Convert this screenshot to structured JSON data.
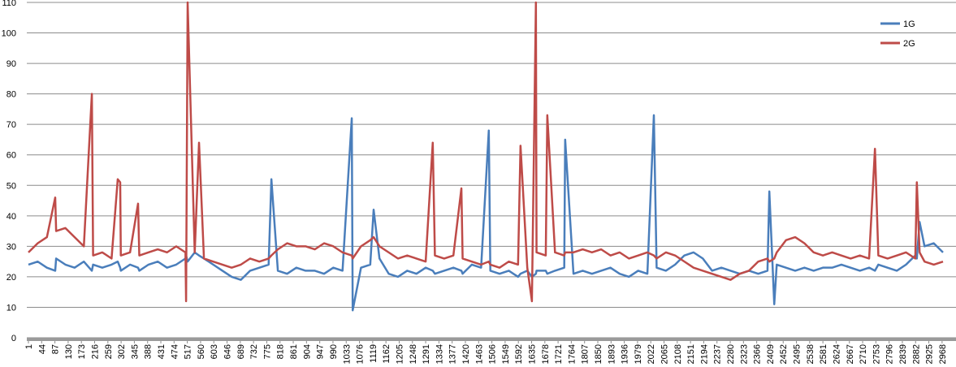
{
  "chart_data": {
    "type": "line",
    "x": [
      1,
      31,
      61,
      88,
      91,
      121,
      151,
      181,
      207,
      211,
      241,
      271,
      291,
      299,
      301,
      331,
      357,
      361,
      391,
      421,
      451,
      481,
      511,
      513,
      518,
      541,
      555,
      571,
      601,
      631,
      661,
      691,
      721,
      751,
      781,
      790,
      811,
      841,
      871,
      901,
      931,
      961,
      991,
      1021,
      1051,
      1054,
      1081,
      1111,
      1122,
      1141,
      1171,
      1201,
      1231,
      1261,
      1291,
      1314,
      1321,
      1351,
      1381,
      1407,
      1411,
      1441,
      1471,
      1496,
      1501,
      1531,
      1561,
      1591,
      1599,
      1621,
      1636,
      1649,
      1651,
      1681,
      1686,
      1711,
      1741,
      1744,
      1771,
      1801,
      1831,
      1861,
      1891,
      1921,
      1951,
      1981,
      2011,
      2032,
      2041,
      2071,
      2101,
      2131,
      2161,
      2191,
      2221,
      2251,
      2281,
      2311,
      2341,
      2371,
      2401,
      2407,
      2423,
      2431,
      2461,
      2491,
      2521,
      2551,
      2581,
      2611,
      2641,
      2671,
      2701,
      2731,
      2750,
      2761,
      2791,
      2821,
      2851,
      2881,
      2886,
      2895,
      2911,
      2941,
      2971
    ],
    "series": [
      {
        "name": "1G",
        "color": "#4a7ebb",
        "values": [
          24,
          25,
          23,
          22,
          26,
          24,
          23,
          25,
          22,
          24,
          23,
          24,
          25,
          23,
          22,
          24,
          23,
          22,
          24,
          25,
          23,
          24,
          26,
          27,
          25,
          28,
          27,
          26,
          24,
          22,
          20,
          19,
          22,
          23,
          24,
          52,
          22,
          21,
          23,
          22,
          22,
          21,
          23,
          22,
          72,
          9,
          23,
          24,
          42,
          26,
          21,
          20,
          22,
          21,
          23,
          22,
          21,
          22,
          23,
          22,
          21,
          24,
          23,
          68,
          22,
          21,
          22,
          20,
          21,
          22,
          20,
          21,
          22,
          22,
          21,
          22,
          23,
          65,
          21,
          22,
          21,
          22,
          23,
          21,
          20,
          22,
          21,
          73,
          23,
          22,
          24,
          27,
          28,
          26,
          22,
          23,
          22,
          21,
          22,
          21,
          22,
          48,
          11,
          24,
          23,
          22,
          23,
          22,
          23,
          23,
          24,
          23,
          22,
          23,
          22,
          24,
          23,
          22,
          24,
          27,
          26,
          38,
          30,
          31,
          28
        ]
      },
      {
        "name": "2G",
        "color": "#be4b48",
        "values": [
          28,
          31,
          33,
          46,
          35,
          36,
          33,
          30,
          80,
          27,
          28,
          26,
          52,
          51,
          27,
          28,
          44,
          27,
          28,
          29,
          28,
          30,
          28,
          12,
          110,
          28,
          64,
          26,
          25,
          24,
          23,
          24,
          26,
          25,
          26,
          27,
          29,
          31,
          30,
          30,
          29,
          31,
          30,
          28,
          27,
          26,
          30,
          32,
          33,
          30,
          28,
          26,
          27,
          26,
          25,
          64,
          27,
          26,
          27,
          49,
          26,
          25,
          24,
          25,
          24,
          23,
          25,
          24,
          63,
          23,
          12,
          110,
          28,
          27,
          73,
          28,
          27,
          28,
          28,
          29,
          28,
          29,
          27,
          28,
          26,
          27,
          28,
          27,
          26,
          28,
          27,
          25,
          23,
          22,
          21,
          20,
          19,
          21,
          22,
          25,
          26,
          25,
          26,
          28,
          32,
          33,
          31,
          28,
          27,
          28,
          27,
          26,
          27,
          26,
          62,
          27,
          26,
          27,
          28,
          26,
          51,
          28,
          25,
          24,
          25
        ]
      }
    ],
    "xlim": [
      1,
      3000
    ],
    "xticks": [
      1,
      44,
      87,
      130,
      173,
      216,
      259,
      302,
      345,
      388,
      431,
      474,
      517,
      560,
      603,
      646,
      689,
      732,
      775,
      818,
      861,
      904,
      947,
      990,
      1033,
      1076,
      1119,
      1162,
      1205,
      1248,
      1291,
      1334,
      1377,
      1420,
      1463,
      1506,
      1549,
      1592,
      1635,
      1678,
      1721,
      1764,
      1807,
      1850,
      1893,
      1936,
      1979,
      2022,
      2065,
      2108,
      2151,
      2194,
      2237,
      2280,
      2323,
      2366,
      2409,
      2452,
      2495,
      2538,
      2581,
      2624,
      2667,
      2710,
      2753,
      2796,
      2839,
      2882,
      2925,
      2968
    ],
    "ylim": [
      0,
      110
    ],
    "yticks": [
      0,
      10,
      20,
      30,
      40,
      50,
      60,
      70,
      80,
      90,
      100,
      110
    ],
    "grid": true,
    "legend": "top-right"
  }
}
